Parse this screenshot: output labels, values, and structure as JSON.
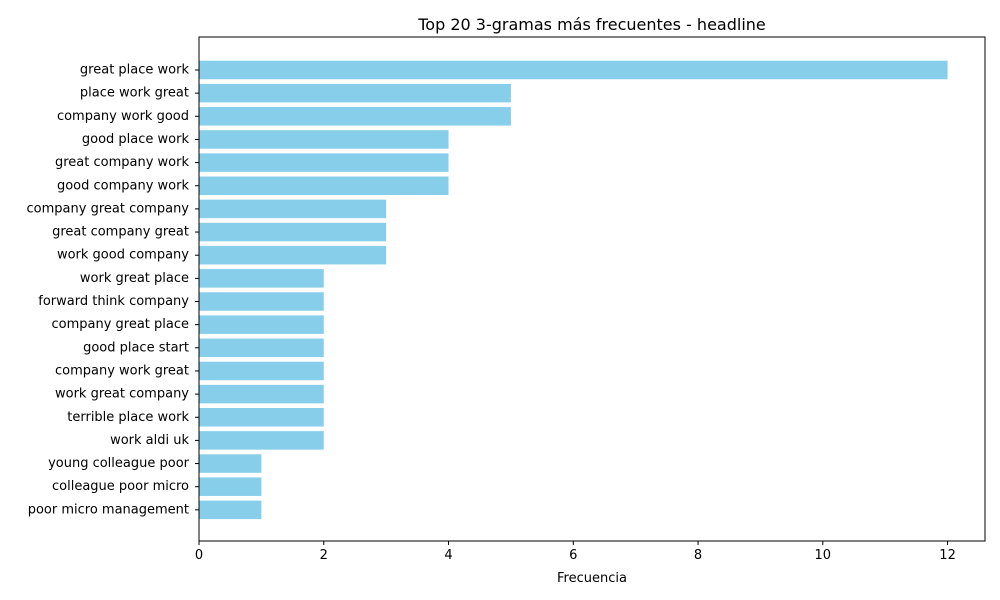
{
  "chart_data": {
    "type": "bar",
    "orientation": "horizontal",
    "title": "Top 20 3-gramas más frecuentes - headline",
    "xlabel": "Frecuencia",
    "ylabel": "",
    "xlim": [
      0,
      12.6
    ],
    "xticks": [
      0,
      2,
      4,
      6,
      8,
      10,
      12
    ],
    "grid": false,
    "bar_color": "#87CEEB",
    "categories": [
      "great place work",
      "place work great",
      "company work good",
      "good place work",
      "great company work",
      "good company work",
      "company great company",
      "great company great",
      "work good company",
      "work great place",
      "forward think company",
      "company great place",
      "good place start",
      "company work great",
      "work great company",
      "terrible place work",
      "work aldi uk",
      "young colleague poor",
      "colleague poor micro",
      "poor micro management"
    ],
    "values": [
      12,
      5,
      5,
      4,
      4,
      4,
      3,
      3,
      3,
      2,
      2,
      2,
      2,
      2,
      2,
      2,
      2,
      1,
      1,
      1
    ]
  }
}
